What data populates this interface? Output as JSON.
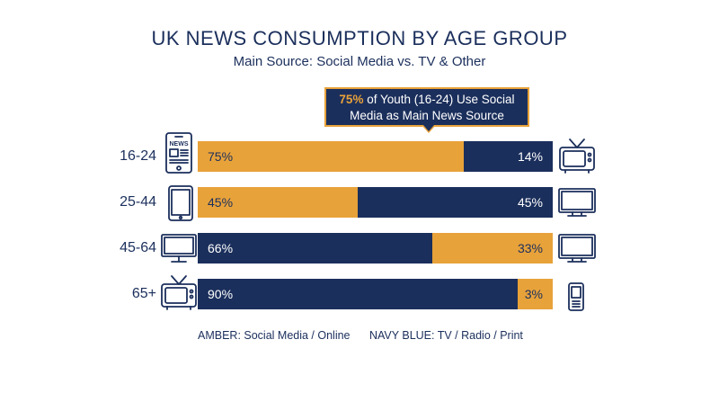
{
  "title": "UK NEWS CONSUMPTION BY AGE GROUP",
  "subtitle": "Main Source: Social Media vs. TV & Other",
  "callout": {
    "highlight": "75%",
    "text_line1": " of Youth (16-24) Use Social",
    "text_line2": "Media as Main News Source"
  },
  "colors": {
    "amber": "#e8a23a",
    "navy": "#1b2f5c"
  },
  "chart_data": {
    "type": "bar",
    "orientation": "horizontal",
    "stacked": true,
    "categories": [
      "16-24",
      "25-44",
      "45-64",
      "65+"
    ],
    "series": [
      {
        "name": "Social Media / Online",
        "color": "#e8a23a",
        "values": [
          75,
          45,
          33,
          3
        ]
      },
      {
        "name": "TV / Radio / Print",
        "color": "#1b2f5c",
        "values": [
          14,
          45,
          66,
          90
        ]
      }
    ],
    "labels": [
      {
        "left": "75%",
        "right": "14%"
      },
      {
        "left": "45%",
        "right": "45%"
      },
      {
        "left": "66%",
        "right": "33%"
      },
      {
        "left": "90%",
        "right": "3%"
      }
    ],
    "order": [
      [
        "amber",
        "navy"
      ],
      [
        "amber",
        "navy"
      ],
      [
        "navy",
        "amber"
      ],
      [
        "navy",
        "amber"
      ]
    ],
    "left_icons": [
      "newspaper-phone-icon",
      "tablet-icon",
      "desktop-monitor-icon",
      "retro-tv-icon"
    ],
    "right_icons": [
      "retro-tv-icon",
      "monitor-icon",
      "monitor-icon",
      "mobile-phone-icon"
    ]
  },
  "legend": {
    "amber": "AMBER: Social Media / Online",
    "navy": "NAVY BLUE: TV / Radio / Print"
  },
  "icon_text": {
    "news": "NEWS"
  }
}
